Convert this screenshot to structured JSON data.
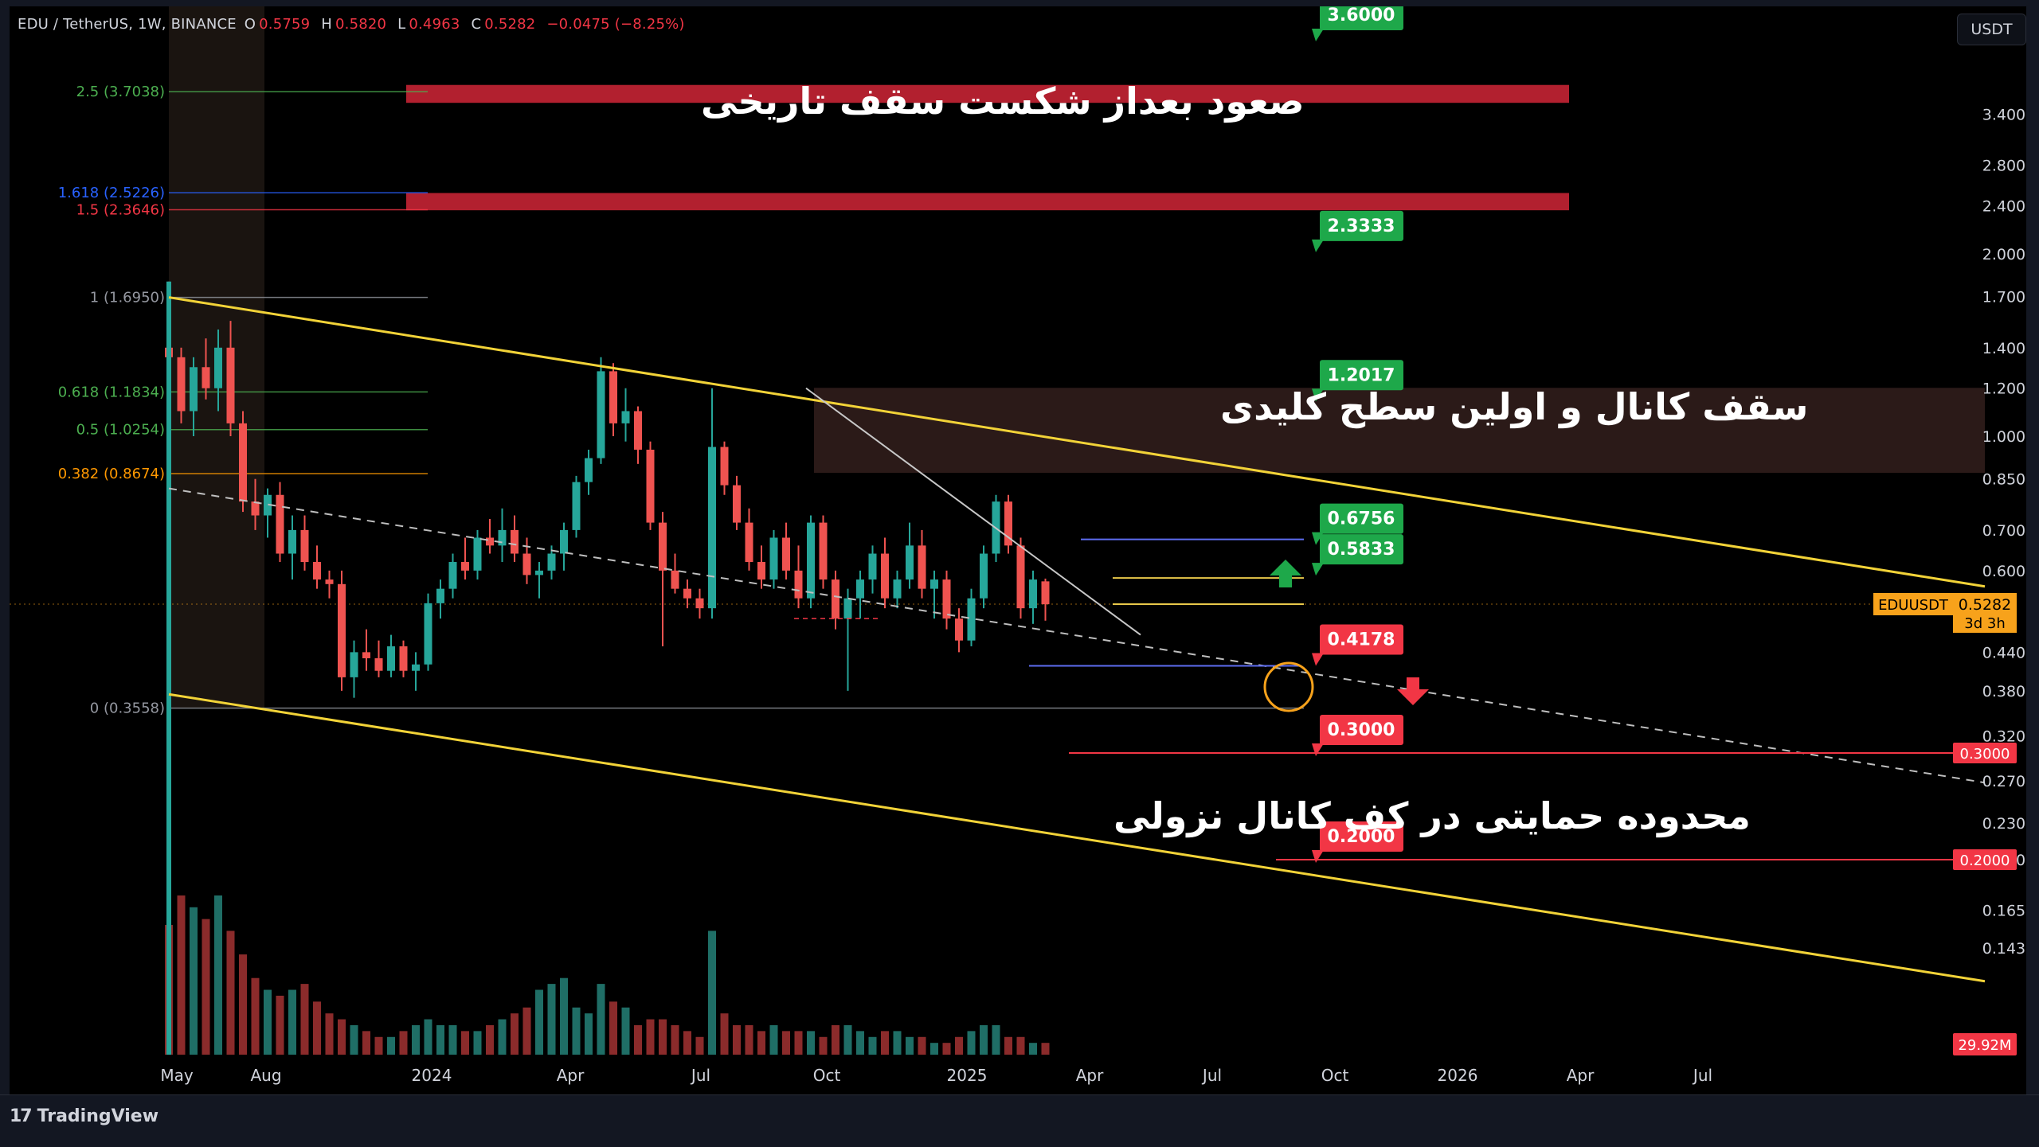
{
  "header": {
    "symbol": "EDU / TetherUS, 1W, BINANCE",
    "ohlc": [
      {
        "k": "O",
        "v": "0.5759"
      },
      {
        "k": "H",
        "v": "0.5820"
      },
      {
        "k": "L",
        "v": "0.4963"
      },
      {
        "k": "C",
        "v": "0.5282"
      }
    ],
    "change": "−0.0475 (−8.25%)",
    "currency": "USDT"
  },
  "annotations_fa": {
    "top": "صعود بعداز شکست سقف تاریخی",
    "middle": "سقف کانال و اولین سطح کلیدی",
    "bottom": "محدوده حمایتی در کف کانال نزولی"
  },
  "branding": {
    "name": "TradingView",
    "mark": "17"
  },
  "colors": {
    "up": "#26a69a",
    "down": "#ef5350",
    "channel": "#f2d338",
    "target_green": "#1ea84a",
    "target_red": "#f23645",
    "fib_red": "#b2202f",
    "price_tag": "#f7a21b"
  },
  "chart_data": {
    "type": "candlestick",
    "symbol": "EDUUSDT",
    "interval": "1W",
    "y_scale": "log",
    "y_axis_ticks": [
      0.143,
      0.165,
      0.2,
      0.23,
      0.27,
      0.32,
      0.38,
      0.44,
      0.6,
      0.7,
      0.85,
      1.0,
      1.2,
      1.4,
      1.7,
      2.0,
      2.4,
      2.8,
      3.4
    ],
    "x_axis_labels": [
      "May",
      "Aug",
      "2024",
      "Apr",
      "Jul",
      "Oct",
      "2025",
      "Apr",
      "Jul",
      "Oct",
      "2026",
      "Apr",
      "Jul"
    ],
    "current_price": {
      "label": "EDUUSDT",
      "value": "0.5282",
      "countdown": "3d 3h"
    },
    "volume_label": "29.92M",
    "right_axis_tags": [
      "0.3000",
      "0.2000"
    ],
    "fib_levels": [
      {
        "label": "2.5 (3.7038)",
        "value": 3.7038,
        "color": "#4caf50"
      },
      {
        "label": "1.618 (2.5226)",
        "value": 2.5226,
        "color": "#2962ff"
      },
      {
        "label": "1.5 (2.3646)",
        "value": 2.3646,
        "color": "#f23645"
      },
      {
        "label": "1 (1.6950)",
        "value": 1.695,
        "color": "#9598a1"
      },
      {
        "label": "0.618 (1.1834)",
        "value": 1.1834,
        "color": "#4caf50"
      },
      {
        "label": "0.5 (1.0254)",
        "value": 1.0254,
        "color": "#4caf50"
      },
      {
        "label": "0.382 (0.8674)",
        "value": 0.8674,
        "color": "#ff9800"
      },
      {
        "label": "0 (0.3558)",
        "value": 0.3558,
        "color": "#9598a1"
      }
    ],
    "targets": [
      {
        "label": "3.6000",
        "value": 3.6,
        "kind": "up"
      },
      {
        "label": "2.3333",
        "value": 2.3333,
        "kind": "up"
      },
      {
        "label": "1.2017",
        "value": 1.2017,
        "kind": "up"
      },
      {
        "label": "0.6756",
        "value": 0.6756,
        "kind": "up"
      },
      {
        "label": "0.5833",
        "value": 0.5833,
        "kind": "up"
      },
      {
        "label": "0.4178",
        "value": 0.4178,
        "kind": "down"
      },
      {
        "label": "0.3000",
        "value": 0.3,
        "kind": "down"
      },
      {
        "label": "0.2000",
        "value": 0.2,
        "kind": "down"
      }
    ],
    "candles_ohlc": [
      [
        1.4,
        1.8,
        1.2,
        1.35
      ],
      [
        1.35,
        1.4,
        1.05,
        1.1
      ],
      [
        1.1,
        1.35,
        1.0,
        1.3
      ],
      [
        1.3,
        1.45,
        1.15,
        1.2
      ],
      [
        1.2,
        1.5,
        1.1,
        1.4
      ],
      [
        1.4,
        1.55,
        1.0,
        1.05
      ],
      [
        1.05,
        1.1,
        0.75,
        0.78
      ],
      [
        0.78,
        0.85,
        0.7,
        0.74
      ],
      [
        0.74,
        0.82,
        0.68,
        0.8
      ],
      [
        0.8,
        0.84,
        0.62,
        0.64
      ],
      [
        0.64,
        0.74,
        0.58,
        0.7
      ],
      [
        0.7,
        0.74,
        0.6,
        0.62
      ],
      [
        0.62,
        0.66,
        0.56,
        0.58
      ],
      [
        0.58,
        0.6,
        0.54,
        0.57
      ],
      [
        0.57,
        0.6,
        0.38,
        0.4
      ],
      [
        0.4,
        0.46,
        0.37,
        0.44
      ],
      [
        0.44,
        0.48,
        0.41,
        0.43
      ],
      [
        0.43,
        0.46,
        0.4,
        0.41
      ],
      [
        0.41,
        0.47,
        0.4,
        0.45
      ],
      [
        0.45,
        0.46,
        0.4,
        0.41
      ],
      [
        0.41,
        0.44,
        0.38,
        0.42
      ],
      [
        0.42,
        0.55,
        0.41,
        0.53
      ],
      [
        0.53,
        0.58,
        0.5,
        0.56
      ],
      [
        0.56,
        0.64,
        0.54,
        0.62
      ],
      [
        0.62,
        0.68,
        0.58,
        0.6
      ],
      [
        0.6,
        0.7,
        0.58,
        0.68
      ],
      [
        0.68,
        0.73,
        0.64,
        0.66
      ],
      [
        0.66,
        0.76,
        0.62,
        0.7
      ],
      [
        0.7,
        0.74,
        0.62,
        0.64
      ],
      [
        0.64,
        0.68,
        0.57,
        0.59
      ],
      [
        0.59,
        0.62,
        0.54,
        0.6
      ],
      [
        0.6,
        0.66,
        0.58,
        0.64
      ],
      [
        0.64,
        0.72,
        0.6,
        0.7
      ],
      [
        0.7,
        0.86,
        0.68,
        0.84
      ],
      [
        0.84,
        0.95,
        0.8,
        0.92
      ],
      [
        0.92,
        1.35,
        0.9,
        1.28
      ],
      [
        1.28,
        1.32,
        1.0,
        1.05
      ],
      [
        1.05,
        1.2,
        0.98,
        1.1
      ],
      [
        1.1,
        1.12,
        0.9,
        0.95
      ],
      [
        0.95,
        0.98,
        0.7,
        0.72
      ],
      [
        0.72,
        0.75,
        0.45,
        0.6
      ],
      [
        0.6,
        0.64,
        0.55,
        0.56
      ],
      [
        0.56,
        0.58,
        0.52,
        0.54
      ],
      [
        0.54,
        0.56,
        0.5,
        0.52
      ],
      [
        0.52,
        1.2,
        0.5,
        0.96
      ],
      [
        0.96,
        0.98,
        0.8,
        0.83
      ],
      [
        0.83,
        0.86,
        0.7,
        0.72
      ],
      [
        0.72,
        0.76,
        0.6,
        0.62
      ],
      [
        0.62,
        0.66,
        0.56,
        0.58
      ],
      [
        0.58,
        0.7,
        0.56,
        0.68
      ],
      [
        0.68,
        0.72,
        0.58,
        0.6
      ],
      [
        0.6,
        0.66,
        0.52,
        0.54
      ],
      [
        0.54,
        0.74,
        0.52,
        0.72
      ],
      [
        0.72,
        0.74,
        0.56,
        0.58
      ],
      [
        0.58,
        0.6,
        0.48,
        0.5
      ],
      [
        0.5,
        0.56,
        0.38,
        0.54
      ],
      [
        0.54,
        0.6,
        0.5,
        0.58
      ],
      [
        0.58,
        0.66,
        0.55,
        0.64
      ],
      [
        0.64,
        0.68,
        0.52,
        0.54
      ],
      [
        0.54,
        0.6,
        0.52,
        0.58
      ],
      [
        0.58,
        0.72,
        0.56,
        0.66
      ],
      [
        0.66,
        0.7,
        0.54,
        0.56
      ],
      [
        0.56,
        0.6,
        0.5,
        0.58
      ],
      [
        0.58,
        0.6,
        0.48,
        0.5
      ],
      [
        0.5,
        0.52,
        0.44,
        0.46
      ],
      [
        0.46,
        0.56,
        0.45,
        0.54
      ],
      [
        0.54,
        0.66,
        0.52,
        0.64
      ],
      [
        0.64,
        0.8,
        0.62,
        0.78
      ],
      [
        0.78,
        0.8,
        0.64,
        0.66
      ],
      [
        0.66,
        0.68,
        0.5,
        0.52
      ],
      [
        0.52,
        0.6,
        0.49,
        0.58
      ],
      [
        0.576,
        0.582,
        0.496,
        0.528
      ]
    ],
    "volume": [
      22,
      27,
      25,
      23,
      27,
      21,
      17,
      13,
      11,
      10,
      11,
      12,
      9,
      7,
      6,
      5,
      4,
      3,
      3,
      4,
      5,
      6,
      5,
      5,
      4,
      4,
      5,
      6,
      7,
      8,
      11,
      12,
      13,
      8,
      7,
      12,
      9,
      8,
      5,
      6,
      6,
      5,
      4,
      3,
      21,
      7,
      5,
      5,
      4,
      5,
      4,
      4,
      4,
      3,
      5,
      5,
      4,
      3,
      4,
      4,
      3,
      3,
      2,
      2,
      3,
      4,
      5,
      5,
      3,
      3,
      2,
      2
    ],
    "volume_scale_max": 27
  }
}
